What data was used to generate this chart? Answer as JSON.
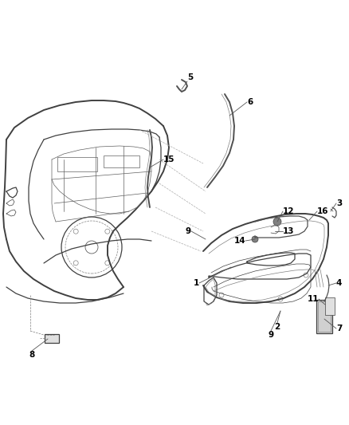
{
  "background_color": "#ffffff",
  "line_color": "#404040",
  "label_color": "#000000",
  "fig_width": 4.38,
  "fig_height": 5.33,
  "dpi": 100,
  "label_fontsize": 7.5,
  "thin_lw": 0.5,
  "main_lw": 0.9,
  "thick_lw": 1.4
}
